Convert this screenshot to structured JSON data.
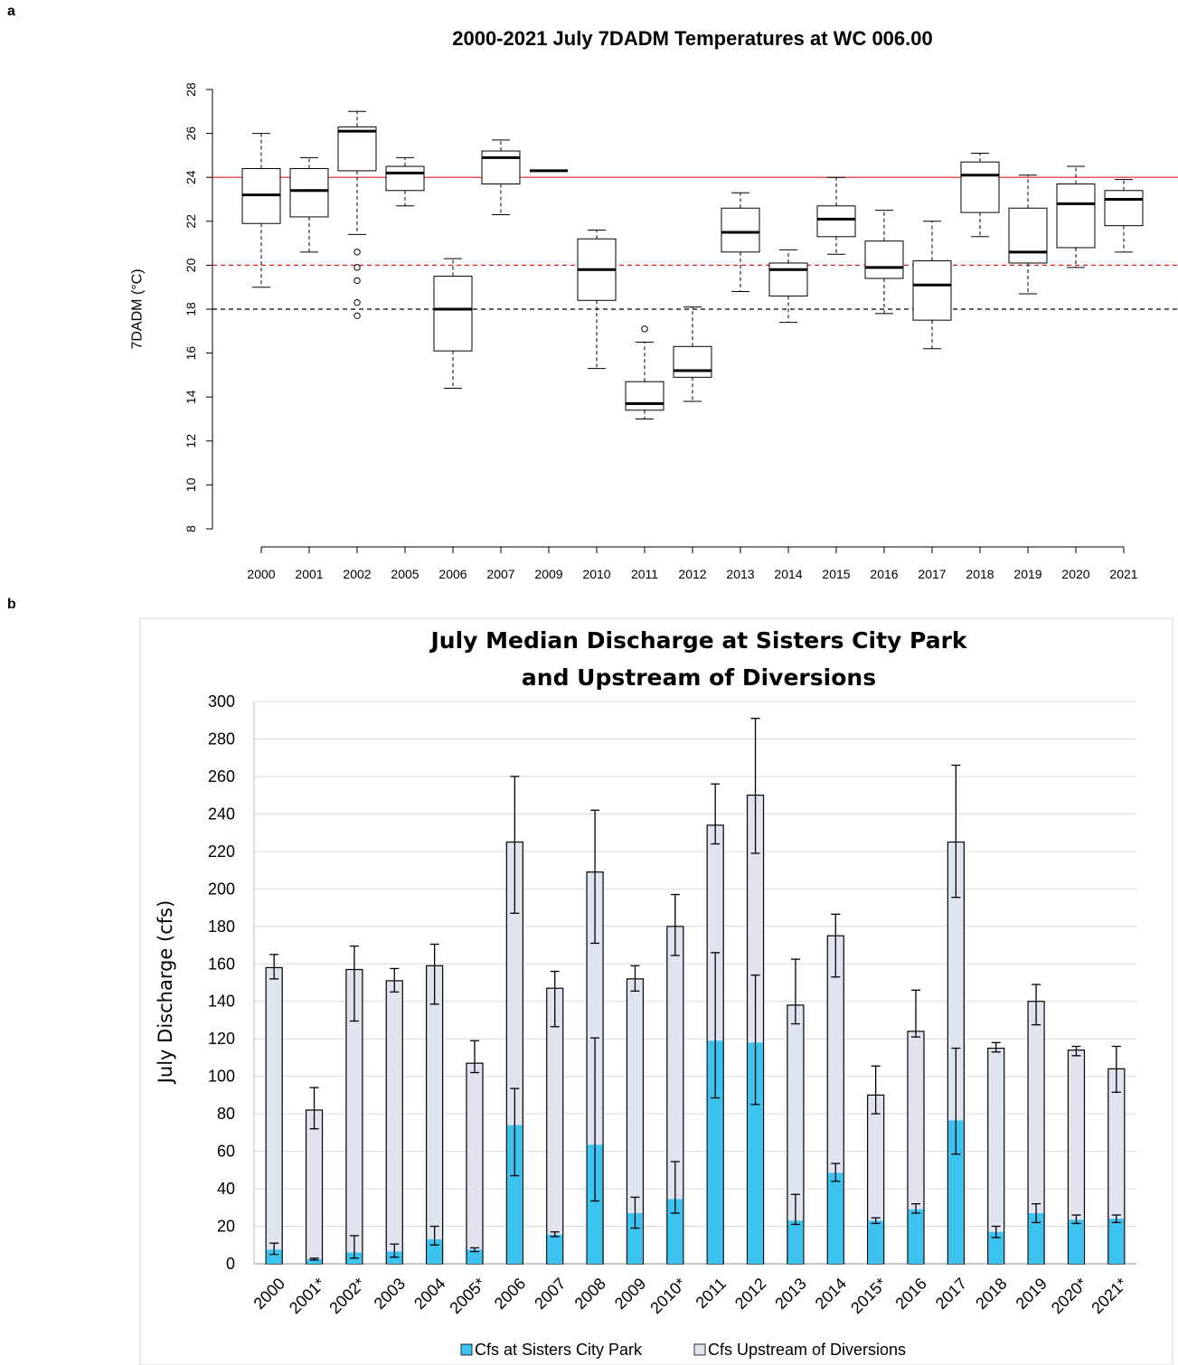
{
  "panel_labels": {
    "a": "a",
    "b": "b"
  },
  "chart_data": [
    {
      "type": "box",
      "title": "2000-2021 July 7DADM Temperatures at WC 006.00",
      "xlabel": "",
      "ylabel": "7DADM (°C)",
      "ylim": [
        7.2,
        28.2
      ],
      "yticks": [
        8,
        10,
        12,
        14,
        16,
        18,
        20,
        22,
        24,
        26,
        28
      ],
      "grid": false,
      "reference_lines": [
        {
          "value": 24,
          "style": "solid",
          "color": "#e02020"
        },
        {
          "value": 20,
          "style": "dashed",
          "color": "#e02020"
        },
        {
          "value": 18,
          "style": "dashed",
          "color": "#000000"
        }
      ],
      "categories": [
        "2000",
        "2001",
        "2002",
        "2005",
        "2006",
        "2007",
        "2009",
        "2010",
        "2011",
        "2012",
        "2013",
        "2014",
        "2015",
        "2016",
        "2017",
        "2018",
        "2019",
        "2020",
        "2021"
      ],
      "boxes": [
        {
          "x": "2000",
          "min": 19.0,
          "q1": 21.9,
          "median": 23.2,
          "q3": 24.4,
          "max": 26.0,
          "outliers": []
        },
        {
          "x": "2001",
          "min": 20.6,
          "q1": 22.2,
          "median": 23.4,
          "q3": 24.4,
          "max": 24.9,
          "outliers": []
        },
        {
          "x": "2002",
          "min": 21.4,
          "q1": 24.3,
          "median": 26.1,
          "q3": 26.3,
          "max": 27.0,
          "outliers": [
            20.6,
            19.9,
            19.3,
            18.3,
            17.7
          ]
        },
        {
          "x": "2005",
          "min": 22.7,
          "q1": 23.4,
          "median": 24.2,
          "q3": 24.5,
          "max": 24.9,
          "outliers": []
        },
        {
          "x": "2006",
          "min": 14.4,
          "q1": 16.1,
          "median": 18.0,
          "q3": 19.5,
          "max": 20.3,
          "outliers": []
        },
        {
          "x": "2007",
          "min": 22.3,
          "q1": 23.7,
          "median": 24.9,
          "q3": 25.2,
          "max": 25.7,
          "outliers": []
        },
        {
          "x": "2009",
          "min": 24.3,
          "q1": 24.3,
          "median": 24.3,
          "q3": 24.3,
          "max": 24.3,
          "outliers": []
        },
        {
          "x": "2010",
          "min": 15.3,
          "q1": 18.4,
          "median": 19.8,
          "q3": 21.2,
          "max": 21.6,
          "outliers": []
        },
        {
          "x": "2011",
          "min": 13.0,
          "q1": 13.4,
          "median": 13.7,
          "q3": 14.7,
          "max": 16.5,
          "outliers": [
            17.1
          ]
        },
        {
          "x": "2012",
          "min": 13.8,
          "q1": 14.9,
          "median": 15.2,
          "q3": 16.3,
          "max": 18.1,
          "outliers": []
        },
        {
          "x": "2013",
          "min": 18.8,
          "q1": 20.6,
          "median": 21.5,
          "q3": 22.6,
          "max": 23.3,
          "outliers": []
        },
        {
          "x": "2014",
          "min": 17.4,
          "q1": 18.6,
          "median": 19.8,
          "q3": 20.1,
          "max": 20.7,
          "outliers": []
        },
        {
          "x": "2015",
          "min": 20.5,
          "q1": 21.3,
          "median": 22.1,
          "q3": 22.7,
          "max": 24.0,
          "outliers": []
        },
        {
          "x": "2016",
          "min": 17.8,
          "q1": 19.4,
          "median": 19.9,
          "q3": 21.1,
          "max": 22.5,
          "outliers": []
        },
        {
          "x": "2017",
          "min": 16.2,
          "q1": 17.5,
          "median": 19.1,
          "q3": 20.2,
          "max": 22.0,
          "outliers": []
        },
        {
          "x": "2018",
          "min": 21.3,
          "q1": 22.4,
          "median": 24.1,
          "q3": 24.7,
          "max": 25.1,
          "outliers": []
        },
        {
          "x": "2019",
          "min": 18.7,
          "q1": 20.1,
          "median": 20.6,
          "q3": 22.6,
          "max": 24.1,
          "outliers": []
        },
        {
          "x": "2020",
          "min": 19.9,
          "q1": 20.8,
          "median": 22.8,
          "q3": 23.7,
          "max": 24.5,
          "outliers": []
        },
        {
          "x": "2021",
          "min": 20.6,
          "q1": 21.8,
          "median": 23.0,
          "q3": 23.4,
          "max": 23.9,
          "outliers": []
        }
      ]
    },
    {
      "type": "bar",
      "title": "July Median Discharge at Sisters City Park and Upstream of Diversions",
      "title_lines": [
        "July Median Discharge at Sisters City Park",
        "and Upstream of Diversions"
      ],
      "xlabel": "",
      "ylabel": "July Discharge (cfs)",
      "ylim": [
        0,
        300
      ],
      "yticks": [
        0,
        20,
        40,
        60,
        80,
        100,
        120,
        140,
        160,
        180,
        200,
        220,
        240,
        260,
        280,
        300
      ],
      "grid": true,
      "legend_position": "bottom",
      "bar_mode": "overlap",
      "categories": [
        "2000",
        "2001*",
        "2002*",
        "2003",
        "2004",
        "2005*",
        "2006",
        "2007",
        "2008",
        "2009",
        "2010*",
        "2011",
        "2012",
        "2013",
        "2014",
        "2015*",
        "2016",
        "2017",
        "2018",
        "2019",
        "2020*",
        "2021*"
      ],
      "series": [
        {
          "name": "Cfs at Sisters City Park",
          "color": "#3cc3ef",
          "values": [
            7.5,
            2.5,
            6,
            6.5,
            13,
            7.5,
            74,
            15.5,
            63.5,
            27,
            34.5,
            119,
            118,
            23,
            48.5,
            23,
            29,
            76.5,
            17,
            27,
            23.5,
            24
          ],
          "err_low": [
            5,
            2,
            3,
            3.5,
            10,
            6.5,
            47,
            14.5,
            33.5,
            19,
            27,
            88.5,
            85,
            21,
            44,
            21.5,
            27,
            58.5,
            14,
            22,
            21.5,
            22
          ],
          "err_high": [
            11,
            3,
            15,
            10.5,
            20,
            8.5,
            93.5,
            17,
            120.5,
            35.5,
            54.5,
            166,
            154,
            37,
            53.5,
            24.5,
            32,
            115,
            20,
            32,
            26,
            26
          ]
        },
        {
          "name": "Cfs Upstream of Diversions",
          "color": "#dfe4ef",
          "values": [
            158,
            82,
            157,
            151,
            159,
            107,
            225,
            147,
            209,
            152,
            180,
            234,
            250,
            138,
            175,
            90,
            124,
            225,
            115,
            140,
            114,
            104
          ],
          "err_low": [
            152,
            72,
            129.5,
            145,
            138.5,
            102,
            187,
            126.5,
            171,
            145.5,
            164.5,
            224,
            219,
            128,
            153,
            80,
            121,
            195.5,
            113,
            127.5,
            111,
            91.5
          ],
          "err_high": [
            165,
            94,
            169.5,
            157.5,
            170.5,
            119,
            260,
            156,
            242,
            159,
            197,
            256,
            291,
            162.5,
            186.5,
            105.5,
            146,
            266,
            118,
            149,
            116,
            116
          ]
        }
      ]
    }
  ]
}
